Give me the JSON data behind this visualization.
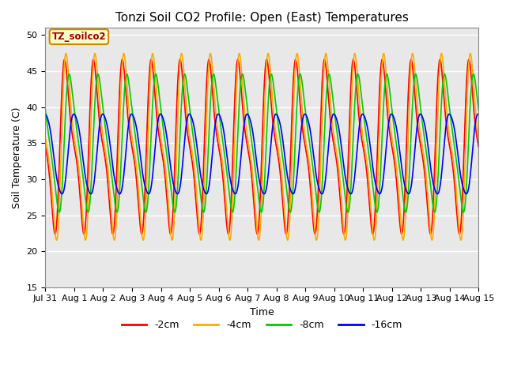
{
  "title": "Tonzi Soil CO2 Profile: Open (East) Temperatures",
  "xlabel": "Time",
  "ylabel": "Soil Temperature (C)",
  "ylim": [
    15,
    51
  ],
  "yticks": [
    15,
    20,
    25,
    30,
    35,
    40,
    45,
    50
  ],
  "legend_label": "TZ_soilco2",
  "series_labels": [
    "-2cm",
    "-4cm",
    "-8cm",
    "-16cm"
  ],
  "series_colors": [
    "#ff0000",
    "#ffaa00",
    "#00cc00",
    "#0000ff"
  ],
  "background_color": "#e8e8e8",
  "n_days": 15,
  "samples_per_day": 144,
  "depths_cfg": {
    "2cm": {
      "amp": 14.5,
      "mean": 34.5,
      "phase_lag": 0.0,
      "skew": 0.4
    },
    "4cm": {
      "amp": 15.5,
      "mean": 34.5,
      "phase_lag": 0.05,
      "skew": 0.4
    },
    "8cm": {
      "amp": 11.5,
      "mean": 35.0,
      "phase_lag": 0.15,
      "skew": 0.3
    },
    "16cm": {
      "amp": 6.5,
      "mean": 33.5,
      "phase_lag": 0.28,
      "skew": 0.1
    }
  },
  "tick_labels": [
    "Jul 31",
    "Aug 1",
    "Aug 2",
    "Aug 3",
    "Aug 4",
    "Aug 5",
    "Aug 6",
    "Aug 7",
    "Aug 8",
    "Aug 9",
    "Aug 10",
    "Aug 11",
    "Aug 12",
    "Aug 13",
    "Aug 14",
    "Aug 15"
  ],
  "title_fontsize": 11,
  "axis_fontsize": 9,
  "tick_fontsize": 8,
  "linewidth": 1.2
}
